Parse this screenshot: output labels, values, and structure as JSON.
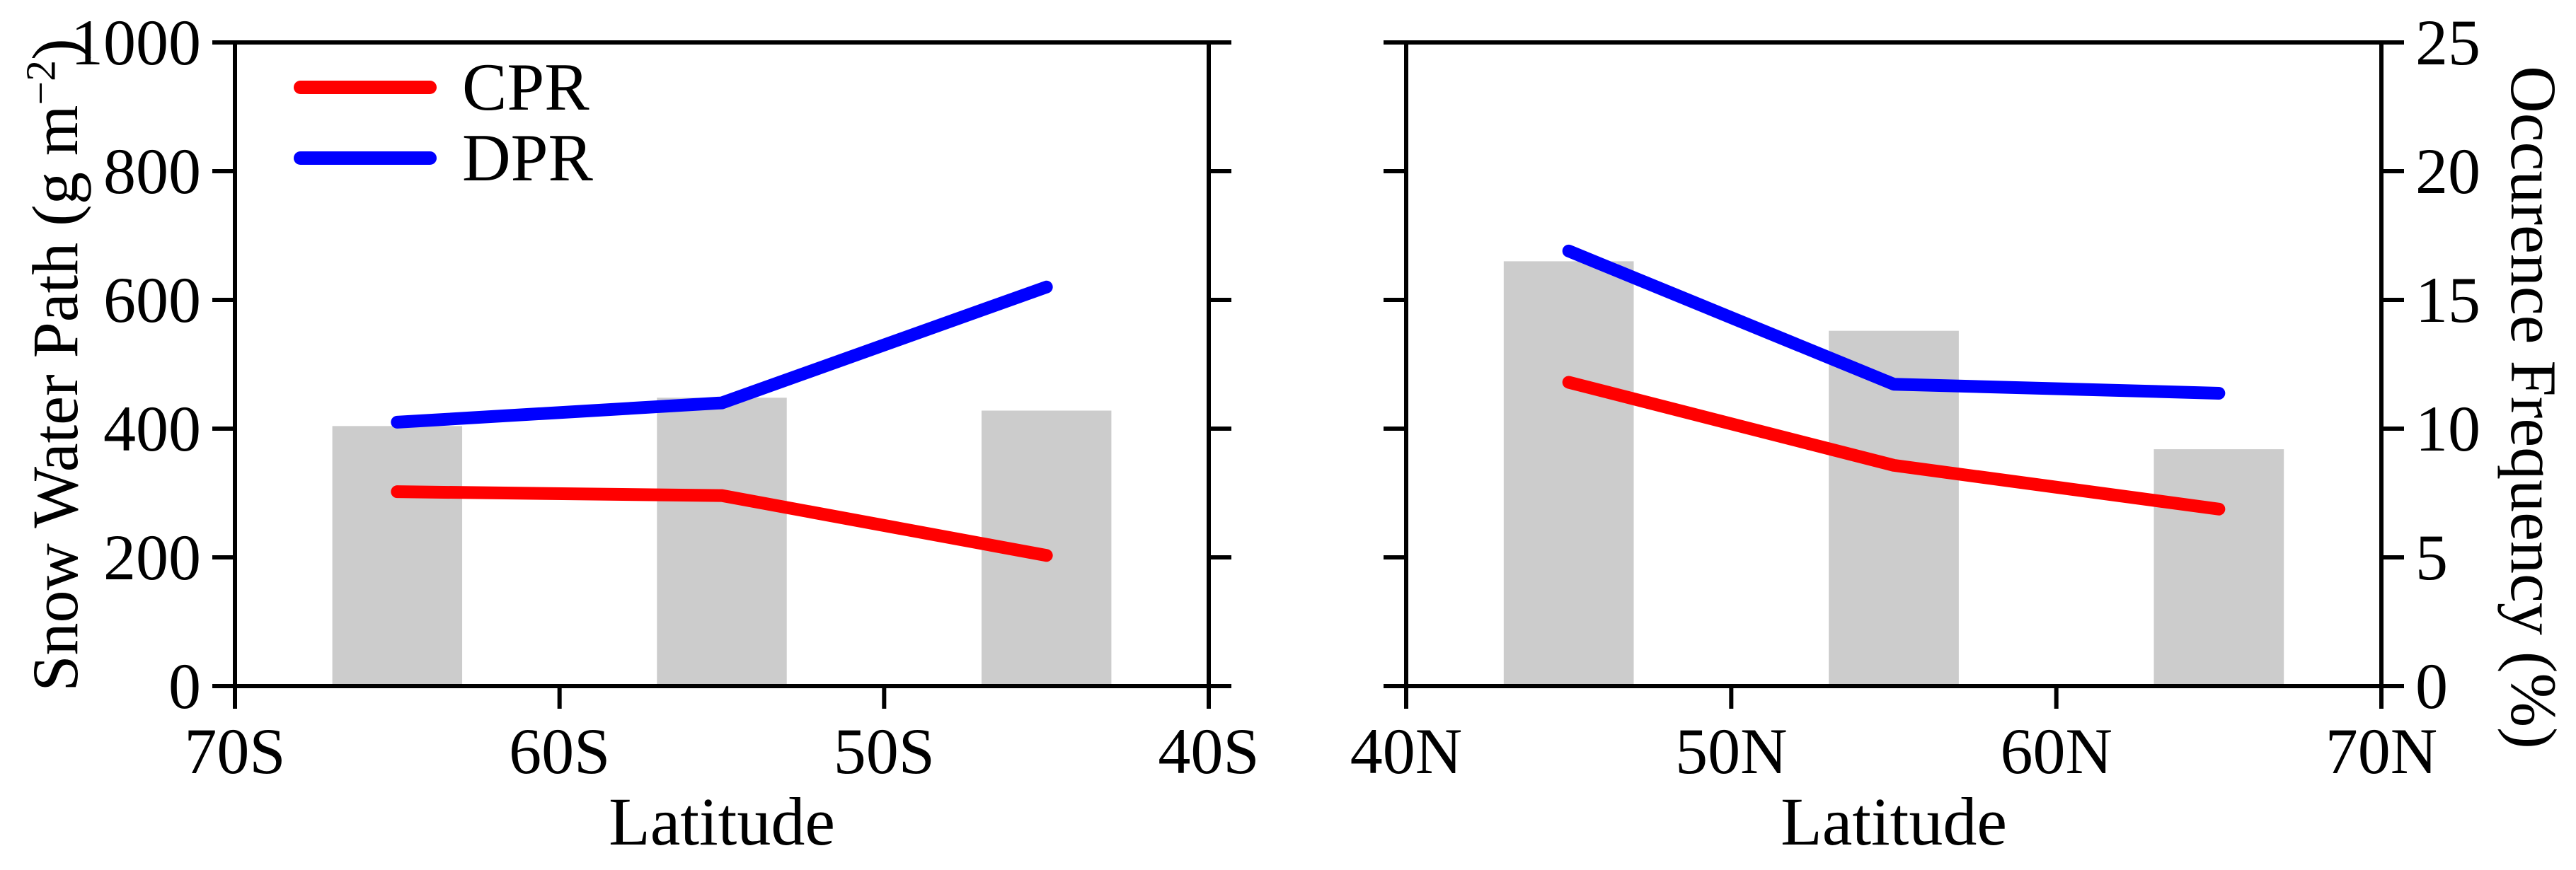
{
  "figure": {
    "background": "#ffffff",
    "axis_color": "#000000",
    "bar_color": "#cccccc",
    "cpr_color": "#ff0000",
    "dpr_color": "#0000ff"
  },
  "axes": {
    "ylabel_left_pre": "Snow Water Path (g m",
    "ylabel_left_sup": "−2",
    "ylabel_left_post": ")",
    "ylabel_right": "Occurence Frequency (%)",
    "xlabel": "Latitude"
  },
  "legend": {
    "position": "top-left",
    "items": [
      {
        "label": "CPR",
        "color": "#ff0000"
      },
      {
        "label": "DPR",
        "color": "#0000ff"
      }
    ]
  },
  "chart_data": [
    {
      "type": "line+bar",
      "panel": "southern-hemisphere",
      "xlabel": "Latitude",
      "x_axis_ticks": [
        "70S",
        "60S",
        "50S",
        "40S"
      ],
      "categories": [
        "65S",
        "55S",
        "45S"
      ],
      "series": [
        {
          "name": "CPR",
          "color": "#ff0000",
          "snow_water_path_g_m2": [
            302,
            296,
            203
          ]
        },
        {
          "name": "DPR",
          "color": "#0000ff",
          "snow_water_path_g_m2": [
            410,
            440,
            620
          ]
        }
      ],
      "bars_occurrence_frequency_pct": [
        10.1,
        11.2,
        10.7
      ],
      "bar_width_degrees": 4,
      "x_span_degrees": 30,
      "ylim_left_swp": [
        0,
        1000
      ],
      "yticks_left": [
        "0",
        "200",
        "400",
        "600",
        "800",
        "1000"
      ],
      "ylim_right_pct": [
        0,
        25
      ],
      "yticks_right": [
        "0",
        "5",
        "10",
        "15",
        "20",
        "25"
      ],
      "grid": false
    },
    {
      "type": "line+bar",
      "panel": "northern-hemisphere",
      "xlabel": "Latitude",
      "x_axis_ticks": [
        "40N",
        "50N",
        "60N",
        "70N"
      ],
      "categories": [
        "45N",
        "55N",
        "65N"
      ],
      "series": [
        {
          "name": "CPR",
          "color": "#ff0000",
          "snow_water_path_g_m2": [
            472,
            343,
            275
          ]
        },
        {
          "name": "DPR",
          "color": "#0000ff",
          "snow_water_path_g_m2": [
            676,
            469,
            455
          ]
        }
      ],
      "bars_occurrence_frequency_pct": [
        16.5,
        13.8,
        9.2
      ],
      "bar_width_degrees": 4,
      "x_span_degrees": 30,
      "ylim_left_swp": [
        0,
        1000
      ],
      "yticks_left": [
        "0",
        "200",
        "400",
        "600",
        "800",
        "1000"
      ],
      "ylim_right_pct": [
        0,
        25
      ],
      "yticks_right": [
        "0",
        "5",
        "10",
        "15",
        "20",
        "25"
      ],
      "grid": false
    }
  ]
}
